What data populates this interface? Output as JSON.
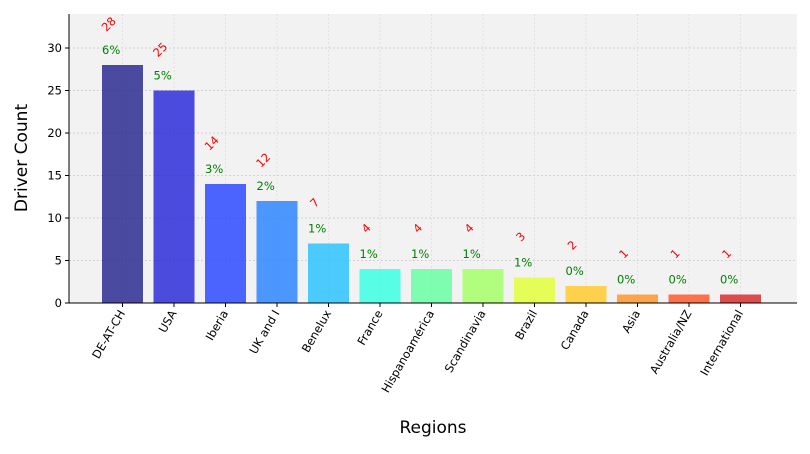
{
  "chart_data": {
    "type": "bar",
    "title": "",
    "xlabel": "Regions",
    "ylabel": "Driver Count",
    "ylim": [
      0,
      34
    ],
    "yticks": [
      "0",
      "5",
      "10",
      "15",
      "20",
      "25",
      "30"
    ],
    "grid": true,
    "categories": [
      "DE-AT-CH",
      "USA",
      "Iberia",
      "UK and I",
      "Benelux",
      "France",
      "Hispanoamérica",
      "Scandinavia",
      "Brazil",
      "Canada",
      "Asia",
      "Australia/NZ",
      "International"
    ],
    "values": [
      28,
      25,
      14,
      12,
      7,
      4,
      4,
      4,
      3,
      2,
      1,
      1,
      1
    ],
    "count_labels": [
      "28",
      "25",
      "14",
      "12",
      "7",
      "4",
      "4",
      "4",
      "3",
      "2",
      "1",
      "1",
      "1"
    ],
    "percent_labels": [
      "6%",
      "5%",
      "3%",
      "2%",
      "1%",
      "1%",
      "1%",
      "1%",
      "1%",
      "0%",
      "0%",
      "0%",
      "0%"
    ],
    "colors": [
      "#1f1f8c",
      "#2020d8",
      "#2040ff",
      "#2080ff",
      "#20c0ff",
      "#30ffe0",
      "#60ffa0",
      "#a0ff60",
      "#e0ff30",
      "#ffc820",
      "#ff9020",
      "#ff5020",
      "#d82020"
    ],
    "count_label_color": "#ff0000",
    "percent_label_color": "#008000",
    "plot_background": "#f2f2f2"
  }
}
